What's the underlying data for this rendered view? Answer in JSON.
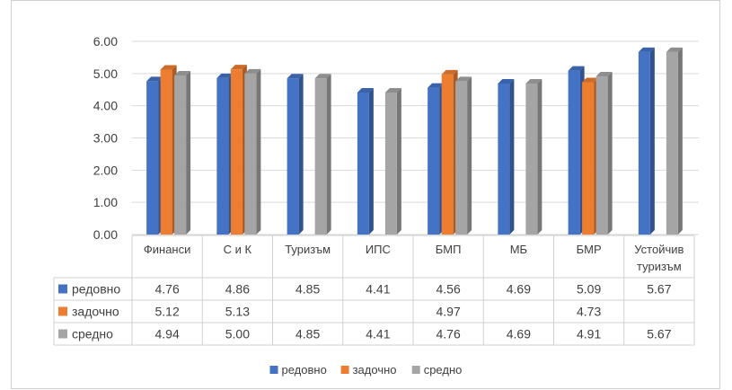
{
  "chart_data": {
    "type": "bar",
    "categories": [
      "Финанси",
      "С и К",
      "Туризъм",
      "ИПС",
      "БМП",
      "МБ",
      "БМР",
      "Устойчив туризъм"
    ],
    "series": [
      {
        "name": "редовно",
        "color": "#4472c4",
        "values": [
          4.76,
          4.86,
          4.85,
          4.41,
          4.56,
          4.69,
          5.09,
          5.67
        ]
      },
      {
        "name": "задочно",
        "color": "#ed7d31",
        "values": [
          5.12,
          5.13,
          null,
          null,
          4.97,
          null,
          4.73,
          null
        ]
      },
      {
        "name": "средно",
        "color": "#a5a5a5",
        "values": [
          4.94,
          5.0,
          4.85,
          4.41,
          4.76,
          4.69,
          4.91,
          5.67
        ]
      }
    ],
    "y_ticks": [
      "0.00",
      "1.00",
      "2.00",
      "3.00",
      "4.00",
      "5.00",
      "6.00"
    ],
    "ylim": [
      0,
      6
    ],
    "grid": true,
    "legend_position": "bottom",
    "data_table": {
      "rows": [
        {
          "series": "редовно",
          "cells": [
            "4.76",
            "4.86",
            "4.85",
            "4.41",
            "4.56",
            "4.69",
            "5.09",
            "5.67"
          ]
        },
        {
          "series": "задочно",
          "cells": [
            "5.12",
            "5.13",
            "",
            "",
            "4.97",
            "",
            "4.73",
            ""
          ]
        },
        {
          "series": "средно",
          "cells": [
            "4.94",
            "5.00",
            "4.85",
            "4.41",
            "4.76",
            "4.69",
            "4.91",
            "5.67"
          ]
        }
      ]
    }
  }
}
